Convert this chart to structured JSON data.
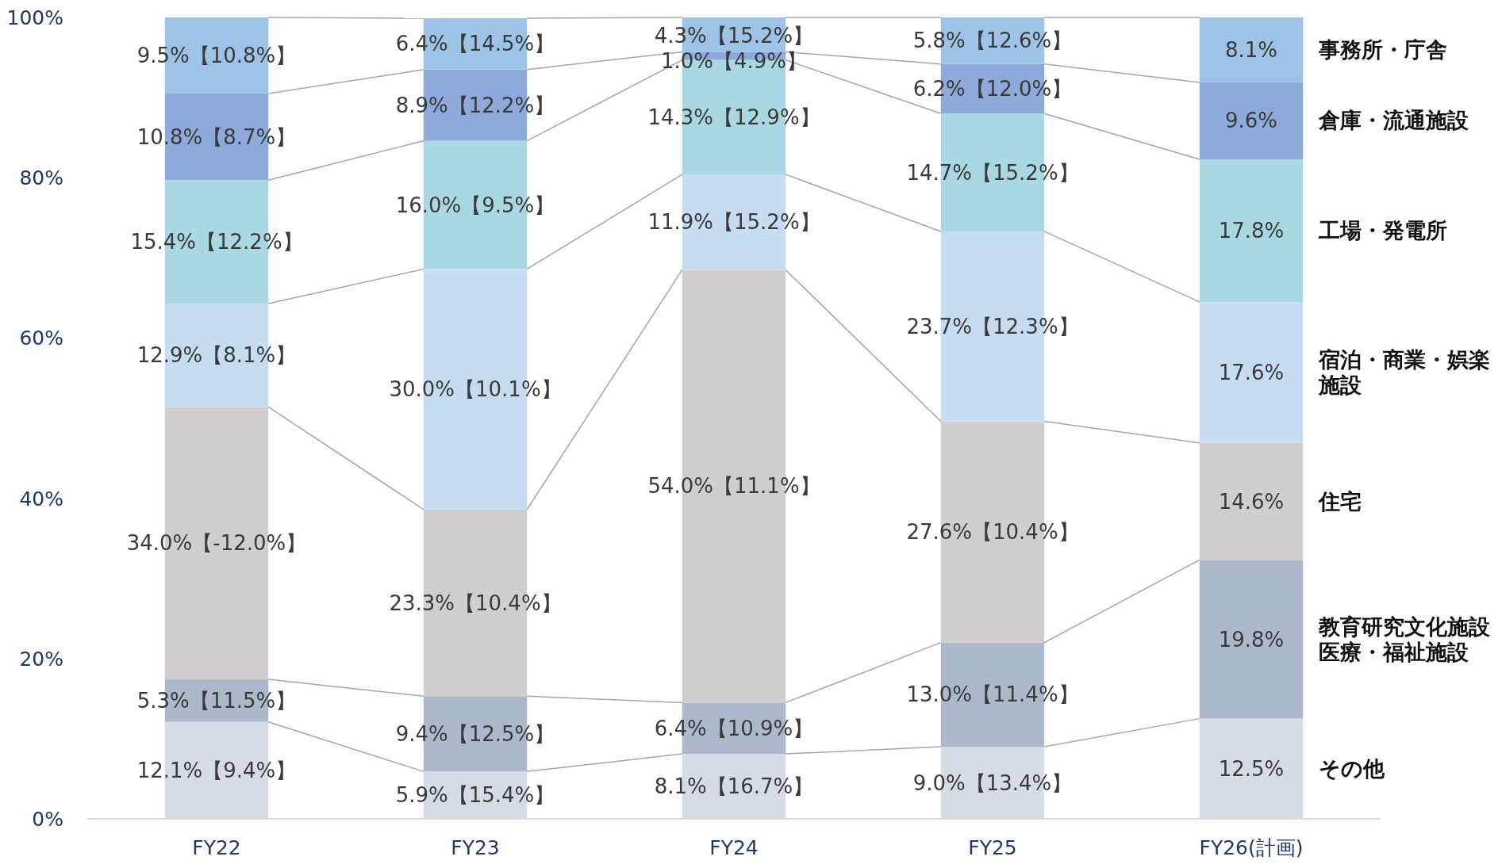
{
  "chart_data": {
    "type": "bar",
    "stacked": true,
    "legend": "right",
    "categories": [
      "FY22",
      "FY23",
      "FY24",
      "FY25",
      "FY26(計画)"
    ],
    "ylim": [
      0,
      100
    ],
    "yticks": [
      {
        "value": 0,
        "label": "0%"
      },
      {
        "value": 20,
        "label": "20%"
      },
      {
        "value": 40,
        "label": "40%"
      },
      {
        "value": 60,
        "label": "60%"
      },
      {
        "value": 80,
        "label": "80%"
      },
      {
        "value": 100,
        "label": "100%"
      }
    ],
    "series": [
      {
        "name": "その他",
        "color": "#d6dce5",
        "values": [
          12.1,
          5.9,
          8.1,
          9.0,
          12.5
        ],
        "value_labels": [
          "12.1%【9.4%】",
          "5.9%【15.4%】",
          "8.1%【16.7%】",
          "9.0%【13.4%】",
          "12.5%"
        ]
      },
      {
        "name": "教育研究文化施設医療・福祉施設",
        "color": "#adb9ca",
        "values": [
          5.3,
          9.4,
          6.4,
          13.0,
          19.8
        ],
        "value_labels": [
          "5.3%【11.5%】",
          "9.4%【12.5%】",
          "6.4%【10.9%】",
          "13.0%【11.4%】",
          "19.8%"
        ]
      },
      {
        "name": "住宅",
        "color": "#d0cece",
        "values": [
          34.0,
          23.3,
          54.0,
          27.6,
          14.6
        ],
        "value_labels": [
          "34.0%【-12.0%】",
          "23.3%【10.4%】",
          "54.0%【11.1%】",
          "27.6%【10.4%】",
          "14.6%"
        ]
      },
      {
        "name": "宿泊・商業・娯楽施設",
        "color": "#c5dcf1",
        "values": [
          12.9,
          30.0,
          11.9,
          23.7,
          17.6
        ],
        "value_labels": [
          "12.9%【8.1%】",
          "30.0%【10.1%】",
          "11.9%【15.2%】",
          "23.7%【12.3%】",
          "17.6%"
        ]
      },
      {
        "name": "工場・発電所",
        "color": "#a9d8e3",
        "values": [
          15.4,
          16.0,
          14.3,
          14.7,
          17.8
        ],
        "value_labels": [
          "15.4%【12.2%】",
          "16.0%【9.5%】",
          "14.3%【12.9%】",
          "14.7%【15.2%】",
          "17.8%"
        ]
      },
      {
        "name": "倉庫・流通施設",
        "color": "#8eaadb",
        "values": [
          10.8,
          8.9,
          1.0,
          6.2,
          9.6
        ],
        "value_labels": [
          "10.8%【8.7%】",
          "8.9%【12.2%】",
          "1.0%【4.9%】",
          "6.2%【12.0%】",
          "9.6%"
        ]
      },
      {
        "name": "事務所・庁舎",
        "color": "#9dc3e6",
        "values": [
          9.5,
          6.4,
          4.3,
          5.8,
          8.1
        ],
        "value_labels": [
          "9.5%【10.8%】",
          "6.4%【14.5%】",
          "4.3%【15.2%】",
          "5.8%【12.6%】",
          "8.1%"
        ]
      }
    ]
  }
}
